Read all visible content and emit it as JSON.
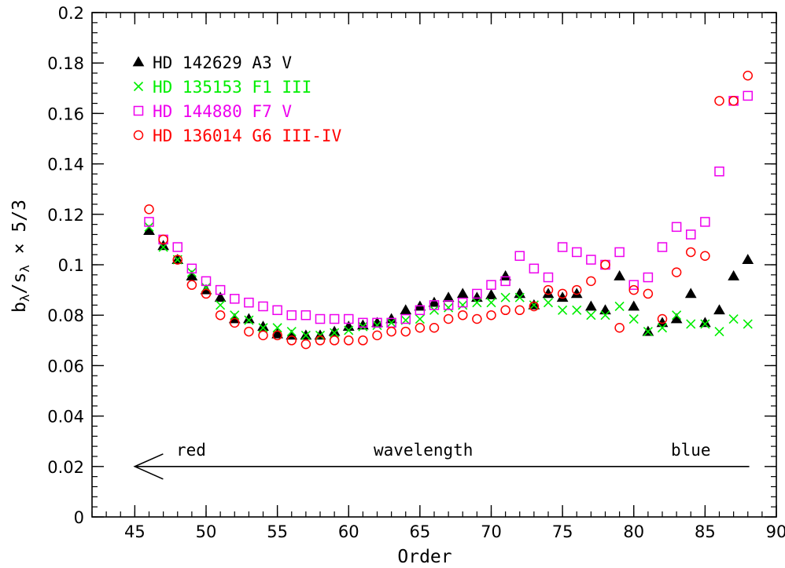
{
  "chart_data": {
    "type": "scatter",
    "xlabel": "Order",
    "ylabel_main": "b",
    "ylabel_sub1": "λ",
    "ylabel_mid": "/s",
    "ylabel_sub2": "λ",
    "ylabel_tail": " × 5/3",
    "xlim": [
      42,
      90
    ],
    "ylim": [
      0,
      0.2
    ],
    "x_ticks": [
      45,
      50,
      55,
      60,
      65,
      70,
      75,
      80,
      85,
      90
    ],
    "y_ticks": [
      0,
      0.02,
      0.04,
      0.06,
      0.08,
      0.1,
      0.12,
      0.14,
      0.16,
      0.18,
      0.2
    ],
    "x_tick_labels": [
      "45",
      "50",
      "55",
      "60",
      "65",
      "70",
      "75",
      "80",
      "85",
      "90"
    ],
    "y_tick_labels": [
      "0",
      "0.02",
      "0.04",
      "0.06",
      "0.08",
      "0.1",
      "0.12",
      "0.14",
      "0.16",
      "0.18",
      "0.2"
    ],
    "legend_position": "top-left",
    "annotations": {
      "red_label": "red",
      "wavelength_label": "wavelength",
      "blue_label": "blue",
      "arrow": {
        "x_start": 88.1,
        "x_end": 45,
        "y": 0.02
      }
    },
    "series": [
      {
        "name": "HD 142629 A3 V",
        "marker": "filled-triangle",
        "color": "#000000",
        "x": [
          46,
          47,
          48,
          49,
          50,
          51,
          52,
          53,
          54,
          55,
          56,
          57,
          58,
          59,
          60,
          61,
          62,
          63,
          64,
          65,
          66,
          67,
          68,
          69,
          70,
          71,
          72,
          73,
          74,
          75,
          76,
          77,
          78,
          79,
          80,
          81,
          82,
          83,
          84,
          85,
          86,
          87,
          88
        ],
        "y": [
          0.1135,
          0.1075,
          0.102,
          0.0955,
          0.09,
          0.087,
          0.0785,
          0.0785,
          0.0755,
          0.0725,
          0.072,
          0.072,
          0.072,
          0.0735,
          0.0755,
          0.076,
          0.077,
          0.0785,
          0.082,
          0.0835,
          0.085,
          0.087,
          0.0885,
          0.087,
          0.088,
          0.0955,
          0.0885,
          0.084,
          0.0885,
          0.087,
          0.0885,
          0.0835,
          0.082,
          0.0955,
          0.0835,
          0.0735,
          0.077,
          0.0785,
          0.0885,
          0.077,
          0.082,
          0.0955,
          0.102
        ]
      },
      {
        "name": "HD 135153 F1 III",
        "marker": "cross",
        "color": "#00ee00",
        "x": [
          46,
          47,
          48,
          49,
          50,
          51,
          52,
          53,
          54,
          55,
          56,
          57,
          58,
          59,
          60,
          61,
          62,
          63,
          64,
          65,
          66,
          67,
          68,
          69,
          70,
          71,
          72,
          73,
          74,
          75,
          76,
          77,
          78,
          79,
          80,
          81,
          82,
          83,
          84,
          85,
          86,
          87,
          88
        ],
        "y": [
          0.115,
          0.107,
          0.102,
          0.097,
          0.091,
          0.084,
          0.08,
          0.078,
          0.075,
          0.075,
          0.0735,
          0.072,
          0.072,
          0.073,
          0.074,
          0.0755,
          0.076,
          0.077,
          0.078,
          0.0785,
          0.082,
          0.083,
          0.084,
          0.085,
          0.085,
          0.087,
          0.087,
          0.084,
          0.085,
          0.082,
          0.082,
          0.08,
          0.08,
          0.0835,
          0.0785,
          0.0735,
          0.075,
          0.08,
          0.0765,
          0.0765,
          0.0735,
          0.0785,
          0.0765
        ]
      },
      {
        "name": "HD 144880 F7 V",
        "marker": "open-square",
        "color": "#ee00ee",
        "x": [
          46,
          47,
          48,
          49,
          50,
          51,
          52,
          53,
          54,
          55,
          56,
          57,
          58,
          59,
          60,
          61,
          62,
          63,
          64,
          65,
          66,
          67,
          68,
          69,
          70,
          71,
          72,
          73,
          74,
          75,
          76,
          77,
          78,
          79,
          80,
          81,
          82,
          83,
          84,
          85,
          86,
          87,
          88
        ],
        "y": [
          0.117,
          0.11,
          0.107,
          0.0985,
          0.0935,
          0.09,
          0.0865,
          0.085,
          0.0835,
          0.082,
          0.08,
          0.08,
          0.0785,
          0.0785,
          0.0785,
          0.077,
          0.077,
          0.077,
          0.0785,
          0.082,
          0.084,
          0.084,
          0.085,
          0.0885,
          0.092,
          0.0935,
          0.1035,
          0.0985,
          0.095,
          0.107,
          0.105,
          0.102,
          0.1,
          0.105,
          0.092,
          0.095,
          0.107,
          0.115,
          0.112,
          0.117,
          0.137,
          0.165,
          0.167
        ]
      },
      {
        "name": "HD 136014 G6 III-IV",
        "marker": "open-circle",
        "color": "#ff0000",
        "x": [
          46,
          47,
          48,
          49,
          50,
          51,
          52,
          53,
          54,
          55,
          56,
          57,
          58,
          59,
          60,
          61,
          62,
          63,
          64,
          65,
          66,
          67,
          68,
          69,
          70,
          71,
          72,
          73,
          74,
          75,
          76,
          77,
          78,
          79,
          80,
          81,
          82,
          83,
          84,
          85,
          86,
          87,
          88
        ],
        "y": [
          0.122,
          0.11,
          0.102,
          0.092,
          0.0885,
          0.08,
          0.077,
          0.0735,
          0.072,
          0.072,
          0.07,
          0.0685,
          0.07,
          0.07,
          0.07,
          0.07,
          0.072,
          0.0735,
          0.0735,
          0.075,
          0.075,
          0.0785,
          0.08,
          0.0785,
          0.08,
          0.082,
          0.082,
          0.0835,
          0.09,
          0.0885,
          0.09,
          0.0935,
          0.1,
          0.075,
          0.09,
          0.0885,
          0.0785,
          0.097,
          0.105,
          0.1035,
          0.165,
          0.165,
          0.175
        ]
      }
    ]
  }
}
